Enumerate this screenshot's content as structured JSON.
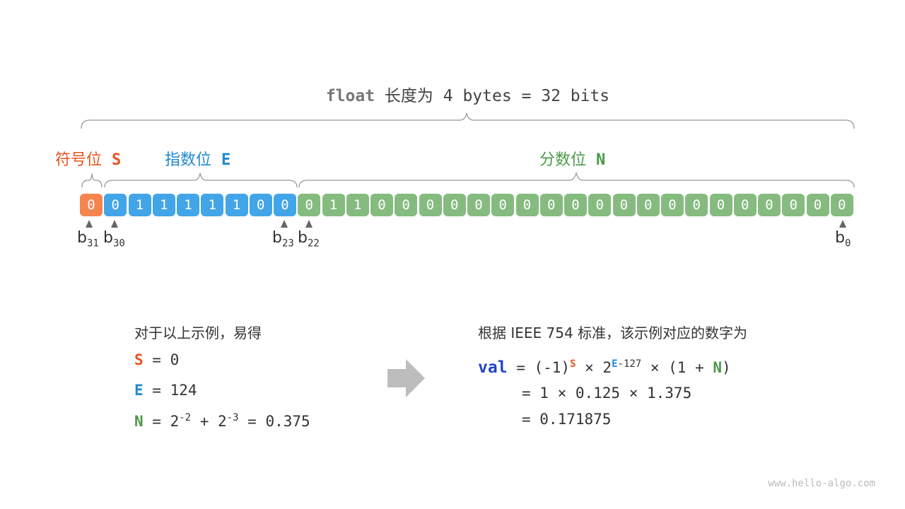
{
  "title": {
    "keyword": "float",
    "text": " 长度为 4 bytes = 32 bits"
  },
  "colors": {
    "sign": "#f5844f",
    "exponent": "#42a5e8",
    "mantissa": "#86bb80",
    "sign_text": "#e8531c",
    "exponent_text": "#1e88d3",
    "mantissa_text": "#4a9a48",
    "val": "#2244cc"
  },
  "labels": {
    "sign": "符号位",
    "sign_sym": "S",
    "exponent": "指数位",
    "exponent_sym": "E",
    "mantissa": "分数位",
    "mantissa_sym": "N"
  },
  "bits": {
    "sign": [
      "0"
    ],
    "exponent": [
      "0",
      "1",
      "1",
      "1",
      "1",
      "1",
      "0",
      "0"
    ],
    "mantissa": [
      "0",
      "1",
      "1",
      "0",
      "0",
      "0",
      "0",
      "0",
      "0",
      "0",
      "0",
      "0",
      "0",
      "0",
      "0",
      "0",
      "0",
      "0",
      "0",
      "0",
      "0",
      "0",
      "0"
    ]
  },
  "bit_labels": [
    {
      "b": "b",
      "sub": "31"
    },
    {
      "b": "b",
      "sub": "30"
    },
    {
      "b": "b",
      "sub": "23"
    },
    {
      "b": "b",
      "sub": "22"
    },
    {
      "b": "b",
      "sub": "0"
    }
  ],
  "left": {
    "heading": "对于以上示例，易得",
    "s_line": " = 0",
    "e_line": " = 124",
    "n_eq": " = 2",
    "n_exp1": "-2",
    "n_plus": " + 2",
    "n_exp2": "-3",
    "n_result": " = 0.375"
  },
  "right": {
    "heading": "根据 IEEE 754 标准，该示例对应的数字为",
    "val": "val",
    "l1a": " = (-1)",
    "l1b": " × 2",
    "exp": "-127",
    "l1c": " × (1 + ",
    "l1d": ")",
    "l2": "= 1 × 0.125 × 1.375",
    "l3": "= 0.171875"
  },
  "watermark": "www.hello-algo.com"
}
